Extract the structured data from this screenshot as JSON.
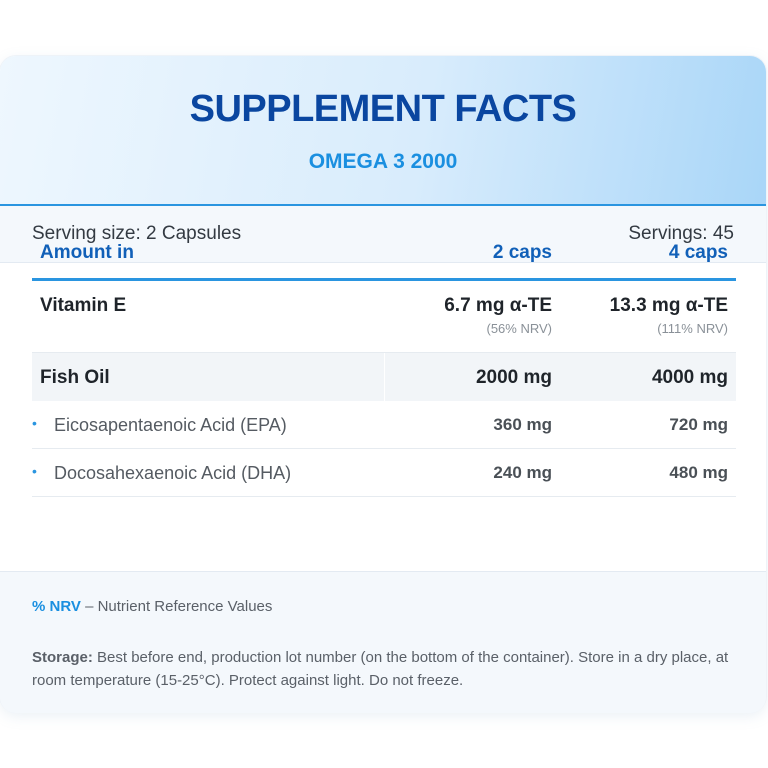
{
  "header": {
    "title": "SUPPLEMENT FACTS",
    "subtitle": "OMEGA 3 2000"
  },
  "serving": {
    "size": "Serving size: 2 Capsules",
    "servings": "Servings: 45"
  },
  "table": {
    "columns": [
      "Amount in",
      "2 caps",
      "4 caps"
    ],
    "vitamin_e": {
      "name": "Vitamin E",
      "caps2": "6.7 mg α-TE",
      "caps2_nrv": "(56% NRV)",
      "caps4": "13.3 mg α-TE",
      "caps4_nrv": "(111% NRV)"
    },
    "fish_oil": {
      "name": "Fish Oil",
      "caps2": "2000 mg",
      "caps4": "4000 mg"
    },
    "sub_rows": [
      {
        "bullet": "•",
        "name": "Eicosapentaenoic Acid (EPA)",
        "caps2": "360 mg",
        "caps4": "720 mg"
      },
      {
        "bullet": "•",
        "name": "Docosahexaenoic Acid (DHA)",
        "caps2": "240 mg",
        "caps4": "480 mg"
      }
    ]
  },
  "footer": {
    "nrv_abbr": "% NRV",
    "nrv_text": " – Nutrient Reference Values",
    "storage_label": "Storage:",
    "storage_text": " Best before end, production lot number (on the bottom of the container). Store in a dry place, at room temperature (15-25°C). Protect against light. Do not freeze."
  },
  "colors": {
    "title": "#0a46a0",
    "accent": "#2a95e0",
    "header_text": "#1160b8"
  }
}
